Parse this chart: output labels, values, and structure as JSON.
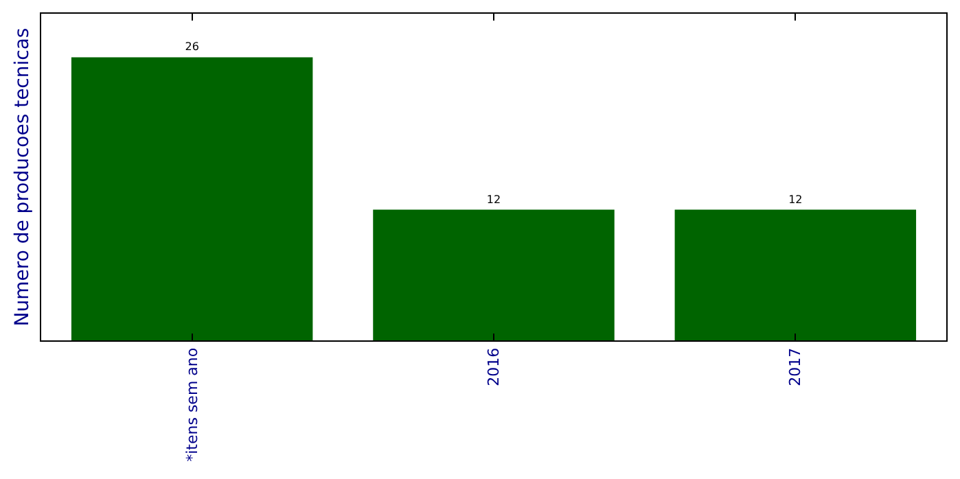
{
  "chart_data": {
    "type": "bar",
    "ylabel": "Numero de producoes tecnicas",
    "categories": [
      "*itens sem ano",
      "2016",
      "2017"
    ],
    "values": [
      26,
      12,
      12
    ],
    "color": "#006400",
    "ylim": [
      0,
      30
    ],
    "data_labels": true,
    "tick_labels": "x",
    "legend": false
  }
}
